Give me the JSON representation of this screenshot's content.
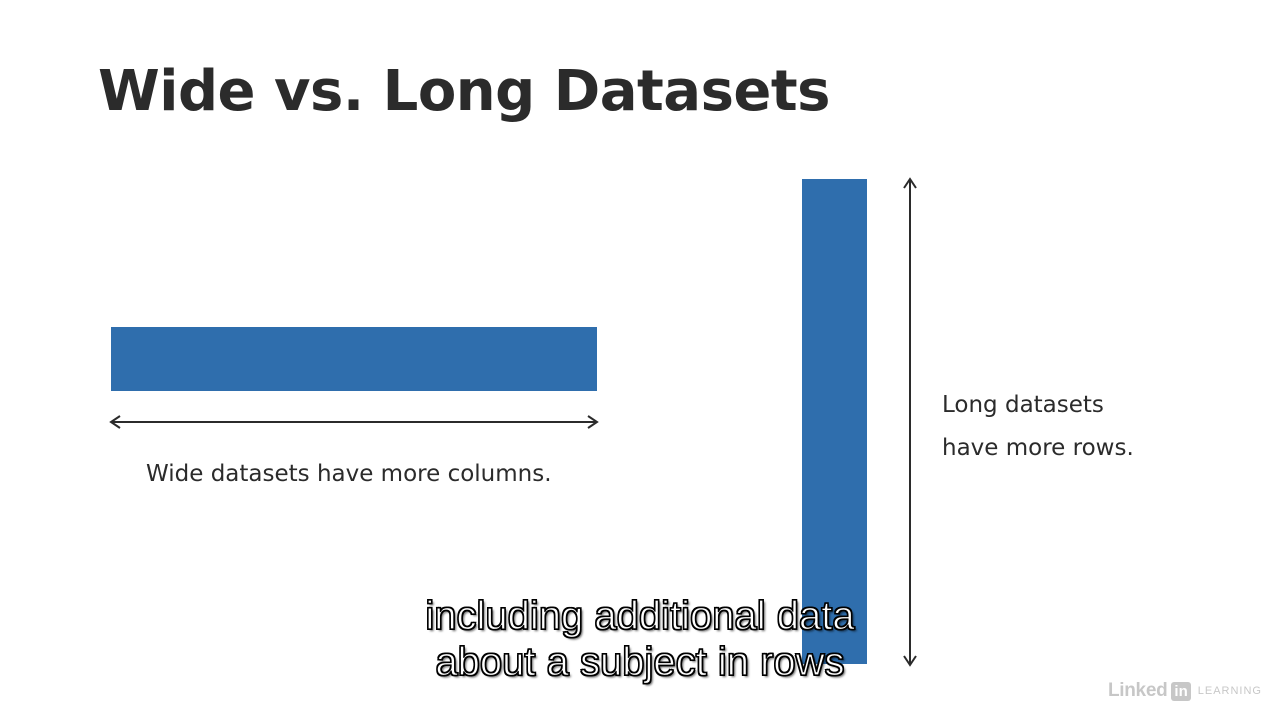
{
  "slide": {
    "title": "Wide vs. Long Datasets",
    "wide_caption": "Wide datasets have more columns.",
    "long_caption_line1": "Long datasets",
    "long_caption_line2": "have more rows."
  },
  "subtitle": {
    "line1": "including additional data",
    "line2": "about a subject in rows"
  },
  "watermark": {
    "brand_word": "Linked",
    "brand_badge": "in",
    "product": "LEARNING"
  },
  "colors": {
    "bar": "#2f6ead",
    "text": "#2b2b2b",
    "arrow": "#2b2b2b"
  },
  "icons": {
    "wide_arrow": "double-headed-horizontal-arrow",
    "long_arrow": "double-headed-vertical-arrow",
    "logo": "linkedin-learning-logo"
  }
}
